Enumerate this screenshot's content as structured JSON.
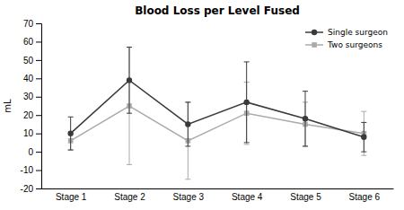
{
  "chart_data": {
    "type": "line",
    "title": "Blood Loss per Level Fused",
    "ylabel": "mL",
    "categories": [
      "Stage 1",
      "Stage 2",
      "Stage 3",
      "Stage 4",
      "Stage 5",
      "Stage 6"
    ],
    "series": [
      {
        "name": "Single surgeon",
        "color": "#3a3a3a",
        "marker": "circle",
        "values": [
          10,
          39,
          15,
          27,
          18,
          8
        ],
        "errors": [
          9,
          18,
          12,
          22,
          15,
          8
        ]
      },
      {
        "name": "Two surgeons",
        "color": "#aaaaaa",
        "marker": "square",
        "values": [
          6,
          25,
          6,
          21,
          15,
          10
        ],
        "errors": [
          5,
          32,
          21,
          17,
          12,
          12
        ]
      }
    ],
    "ylim": [
      -20,
      70
    ],
    "yticks": [
      -20,
      -10,
      0,
      10,
      20,
      30,
      40,
      50,
      60,
      70
    ],
    "grid": false,
    "legend": "upper right"
  }
}
